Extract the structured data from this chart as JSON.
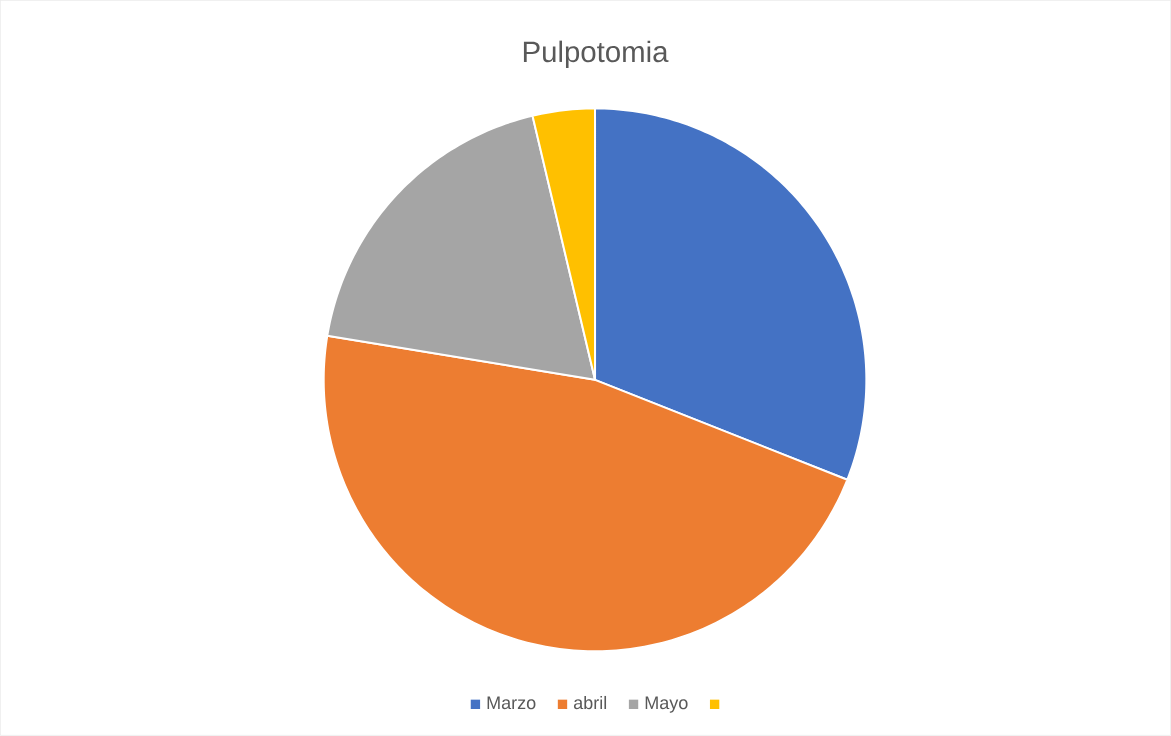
{
  "chart_data": {
    "type": "pie",
    "title": "Pulpotomia",
    "categories": [
      "Marzo",
      "abril",
      "Mayo",
      null
    ],
    "values": [
      31,
      46.6,
      18.7,
      3.7
    ],
    "colors": [
      "#4472c4",
      "#ed7d31",
      "#a5a5a5",
      "#ffc000"
    ],
    "legend": "bottom"
  }
}
